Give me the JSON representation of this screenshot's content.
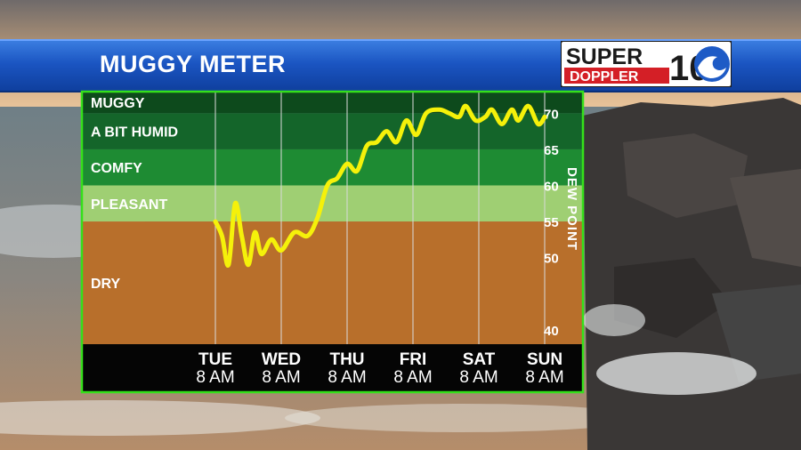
{
  "header": {
    "title": "MUGGY METER"
  },
  "logo": {
    "line1": "SUPER",
    "line2": "DOPPLER",
    "number": "10"
  },
  "chart_data": {
    "type": "line",
    "y_axis_label": "DEW POINT",
    "ylim": [
      38,
      73
    ],
    "yticks": [
      40,
      50,
      55,
      60,
      65,
      70
    ],
    "bands": [
      {
        "label": "MUGGY",
        "min": 70,
        "max": 73,
        "color": "#0d4a1c"
      },
      {
        "label": "A BIT HUMID",
        "min": 65,
        "max": 70,
        "color": "#14652a"
      },
      {
        "label": "COMFY",
        "min": 60,
        "max": 65,
        "color": "#1e8b33"
      },
      {
        "label": "PLEASANT",
        "min": 55,
        "max": 60,
        "color": "#9fcf73"
      },
      {
        "label": "DRY",
        "min": 38,
        "max": 55,
        "color": "#b86f2b"
      }
    ],
    "x_categories": [
      {
        "day": "TUE",
        "time": "8 AM"
      },
      {
        "day": "WED",
        "time": "8 AM"
      },
      {
        "day": "THU",
        "time": "8 AM"
      },
      {
        "day": "FRI",
        "time": "8 AM"
      },
      {
        "day": "SAT",
        "time": "8 AM"
      },
      {
        "day": "SUN",
        "time": "8 AM"
      }
    ],
    "series": [
      {
        "color": "#f5f10a",
        "points": [
          [
            0.0,
            55.0
          ],
          [
            0.1,
            53.0
          ],
          [
            0.2,
            49.0
          ],
          [
            0.3,
            57.5
          ],
          [
            0.4,
            53.0
          ],
          [
            0.5,
            49.0
          ],
          [
            0.6,
            53.5
          ],
          [
            0.7,
            50.5
          ],
          [
            0.85,
            52.5
          ],
          [
            1.0,
            51.0
          ],
          [
            1.2,
            53.5
          ],
          [
            1.4,
            53.0
          ],
          [
            1.55,
            55.5
          ],
          [
            1.7,
            60.0
          ],
          [
            1.85,
            61.0
          ],
          [
            2.0,
            63.0
          ],
          [
            2.15,
            62.0
          ],
          [
            2.3,
            65.5
          ],
          [
            2.45,
            66.0
          ],
          [
            2.6,
            67.5
          ],
          [
            2.75,
            66.0
          ],
          [
            2.9,
            69.0
          ],
          [
            3.05,
            67.0
          ],
          [
            3.2,
            70.0
          ],
          [
            3.4,
            70.5
          ],
          [
            3.55,
            70.0
          ],
          [
            3.7,
            69.5
          ],
          [
            3.8,
            71.0
          ],
          [
            3.95,
            69.0
          ],
          [
            4.1,
            69.5
          ],
          [
            4.2,
            70.5
          ],
          [
            4.35,
            68.5
          ],
          [
            4.5,
            70.5
          ],
          [
            4.6,
            69.0
          ],
          [
            4.75,
            71.0
          ],
          [
            4.9,
            68.5
          ],
          [
            5.0,
            69.5
          ]
        ]
      }
    ]
  }
}
